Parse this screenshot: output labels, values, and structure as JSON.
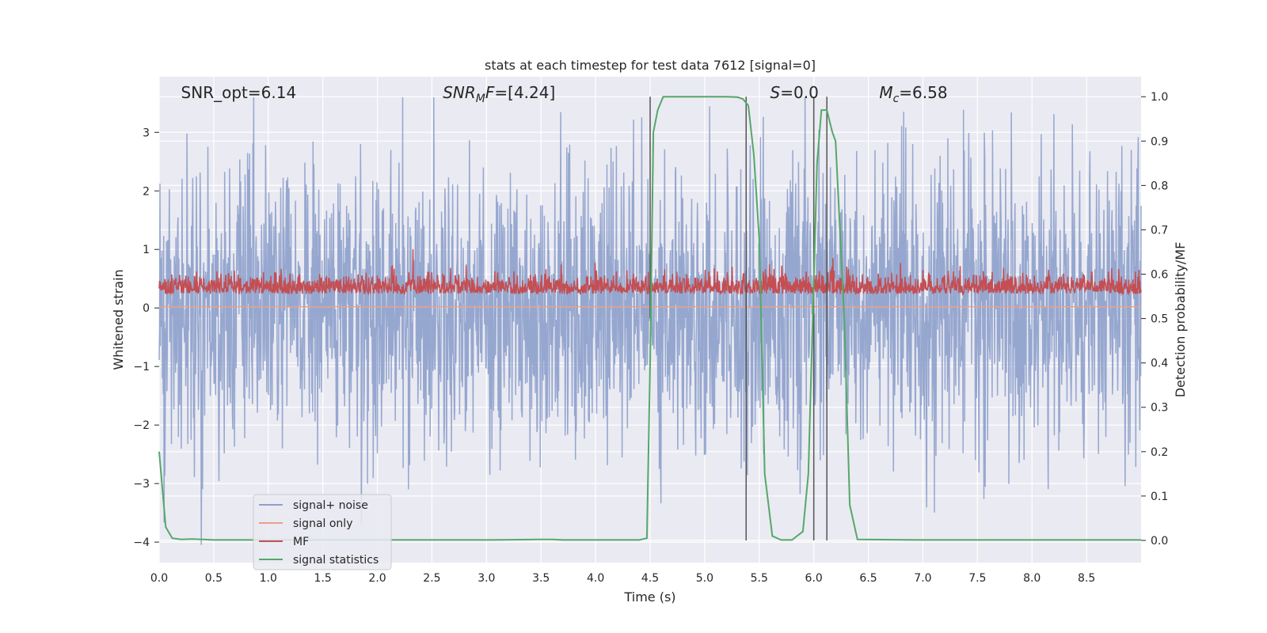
{
  "chart_data": {
    "type": "line",
    "title": "stats at each timestep for test data 7612 [signal=0]",
    "xlabel": "Time (s)",
    "ylabel": "Whitened strain",
    "y2label": "Detection probability/MF",
    "xlim": [
      0,
      9.0
    ],
    "ylim": [
      -4.35,
      3.95
    ],
    "y2lim": [
      -0.05,
      1.045
    ],
    "xticks": [
      "0.0",
      "0.5",
      "1.0",
      "1.5",
      "2.0",
      "2.5",
      "3.0",
      "3.5",
      "4.0",
      "4.5",
      "5.0",
      "5.5",
      "6.0",
      "6.5",
      "7.0",
      "7.5",
      "8.0",
      "8.5"
    ],
    "xtick_values": [
      0,
      0.5,
      1.0,
      1.5,
      2.0,
      2.5,
      3.0,
      3.5,
      4.0,
      4.5,
      5.0,
      5.5,
      6.0,
      6.5,
      7.0,
      7.5,
      8.0,
      8.5
    ],
    "yticks": [
      "3",
      "2",
      "1",
      "0",
      "−1",
      "−2",
      "−3",
      "−4"
    ],
    "ytick_values": [
      3,
      2,
      1,
      0,
      -1,
      -2,
      -3,
      -4
    ],
    "y2ticks": [
      "1.0",
      "0.9",
      "0.8",
      "0.7",
      "0.6",
      "0.5",
      "0.4",
      "0.3",
      "0.2",
      "0.1",
      "0.0"
    ],
    "y2tick_values": [
      1.0,
      0.9,
      0.8,
      0.7,
      0.6,
      0.5,
      0.4,
      0.3,
      0.2,
      0.1,
      0.0
    ],
    "grid": true,
    "legend_position": "bottom-left",
    "annotations": [
      {
        "text": "SNR_opt=6.14",
        "x": 0.2
      },
      {
        "base": "SNR",
        "sub": "M",
        "rest": "F=[4.24]",
        "x": 2.6
      },
      {
        "base": "S",
        "sub": "",
        "rest": "=0.0",
        "x": 5.6
      },
      {
        "base": "M",
        "sub": "c",
        "rest": "=6.58",
        "x": 6.6
      }
    ],
    "vertical_lines": [
      {
        "x": 4.5,
        "y_top": 1.0,
        "y_bottom": 0.5
      },
      {
        "x": 5.38,
        "y_top": 1.0,
        "y_bottom": 0.0
      },
      {
        "x": 6.0,
        "y_top": 1.0,
        "y_bottom": 0.0
      },
      {
        "x": 6.12,
        "y_top": 1.0,
        "y_bottom": 0.0
      }
    ],
    "series": [
      {
        "name": "signal+ noise",
        "color": "#8da0cb",
        "kind": "noise",
        "amplitude": 1.2
      },
      {
        "name": "signal only",
        "color": "#e8a18a",
        "kind": "flat",
        "value": 0.02
      },
      {
        "name": "MF",
        "color": "#c44e52",
        "kind": "mf",
        "center": 0.3
      },
      {
        "name": "signal statistics",
        "color": "#55a868",
        "kind": "prob",
        "x": [
          0.0,
          0.06,
          0.12,
          0.2,
          0.3,
          0.4,
          0.5,
          1.0,
          2.0,
          3.0,
          3.5,
          3.6,
          3.7,
          4.0,
          4.4,
          4.47,
          4.5,
          4.53,
          4.57,
          4.62,
          4.7,
          5.0,
          5.2,
          5.3,
          5.35,
          5.4,
          5.45,
          5.5,
          5.55,
          5.62,
          5.7,
          5.8,
          5.9,
          5.95,
          5.99,
          6.03,
          6.07,
          6.12,
          6.17,
          6.2,
          6.28,
          6.33,
          6.4,
          7.0,
          8.0,
          9.0
        ],
        "y": [
          0.2,
          0.03,
          0.005,
          0.002,
          0.003,
          0.002,
          0.001,
          0.001,
          0.001,
          0.001,
          0.002,
          0.002,
          0.001,
          0.001,
          0.001,
          0.005,
          0.4,
          0.92,
          0.97,
          1.0,
          1.0,
          1.0,
          1.0,
          0.999,
          0.995,
          0.98,
          0.87,
          0.68,
          0.15,
          0.01,
          0.001,
          0.001,
          0.02,
          0.15,
          0.5,
          0.85,
          0.97,
          0.97,
          0.92,
          0.9,
          0.5,
          0.08,
          0.002,
          0.001,
          0.001,
          0.001
        ]
      }
    ]
  }
}
